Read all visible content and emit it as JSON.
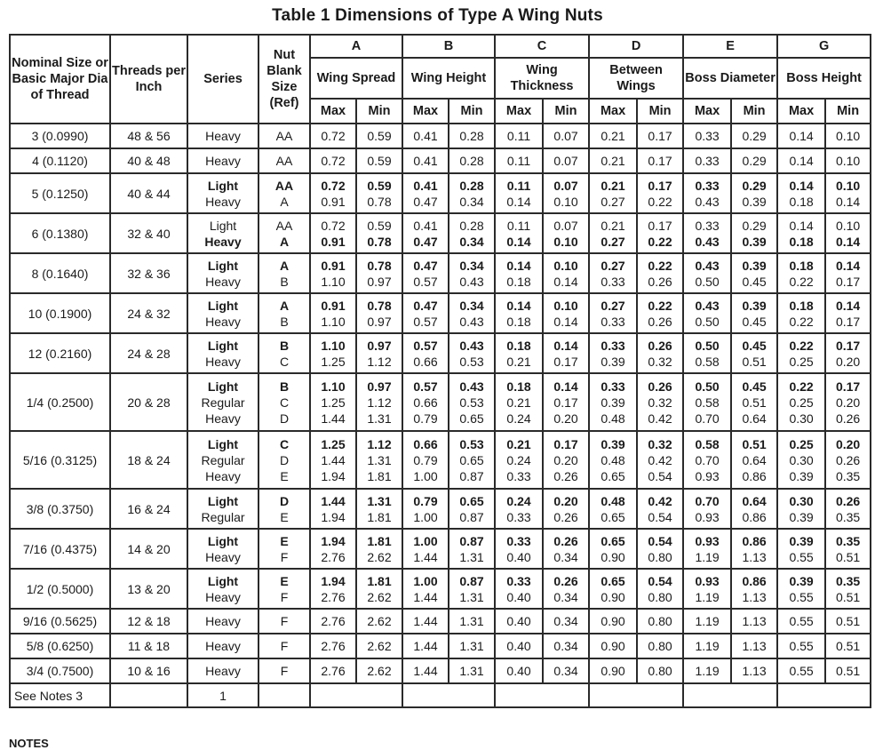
{
  "title": "Table 1   Dimensions of Type A Wing Nuts",
  "header": {
    "nominal": "Nominal Size or Basic Major Dia of Thread",
    "tpi": "Threads per Inch",
    "series": "Series",
    "blank": "Nut Blank Size (Ref)",
    "groups": [
      {
        "letter": "A",
        "name": "Wing Spread"
      },
      {
        "letter": "B",
        "name": "Wing Height"
      },
      {
        "letter": "C",
        "name": "Wing Thickness"
      },
      {
        "letter": "D",
        "name": "Between Wings"
      },
      {
        "letter": "E",
        "name": "Boss Diameter"
      },
      {
        "letter": "G",
        "name": "Boss Height"
      }
    ],
    "max": "Max",
    "min": "Min"
  },
  "rows": [
    {
      "size": "3 (0.0990)",
      "tpi": "48 & 56",
      "sub": [
        {
          "series": "Heavy",
          "blank": "AA",
          "bold": false,
          "v": [
            "0.72",
            "0.59",
            "0.41",
            "0.28",
            "0.11",
            "0.07",
            "0.21",
            "0.17",
            "0.33",
            "0.29",
            "0.14",
            "0.10"
          ]
        }
      ]
    },
    {
      "size": "4 (0.1120)",
      "tpi": "40 & 48",
      "sub": [
        {
          "series": "Heavy",
          "blank": "AA",
          "bold": false,
          "v": [
            "0.72",
            "0.59",
            "0.41",
            "0.28",
            "0.11",
            "0.07",
            "0.21",
            "0.17",
            "0.33",
            "0.29",
            "0.14",
            "0.10"
          ]
        }
      ]
    },
    {
      "size": "5 (0.1250)",
      "tpi": "40 & 44",
      "sub": [
        {
          "series": "Light",
          "blank": "AA",
          "bold": true,
          "v": [
            "0.72",
            "0.59",
            "0.41",
            "0.28",
            "0.11",
            "0.07",
            "0.21",
            "0.17",
            "0.33",
            "0.29",
            "0.14",
            "0.10"
          ]
        },
        {
          "series": "Heavy",
          "blank": "A",
          "bold": false,
          "v": [
            "0.91",
            "0.78",
            "0.47",
            "0.34",
            "0.14",
            "0.10",
            "0.27",
            "0.22",
            "0.43",
            "0.39",
            "0.18",
            "0.14"
          ]
        }
      ]
    },
    {
      "size": "6 (0.1380)",
      "tpi": "32  & 40",
      "sub": [
        {
          "series": "Light",
          "blank": "AA",
          "bold": false,
          "v": [
            "0.72",
            "0.59",
            "0.41",
            "0.28",
            "0.11",
            "0.07",
            "0.21",
            "0.17",
            "0.33",
            "0.29",
            "0.14",
            "0.10"
          ]
        },
        {
          "series": "Heavy",
          "blank": "A",
          "bold": true,
          "v": [
            "0.91",
            "0.78",
            "0.47",
            "0.34",
            "0.14",
            "0.10",
            "0.27",
            "0.22",
            "0.43",
            "0.39",
            "0.18",
            "0.14"
          ]
        }
      ]
    },
    {
      "size": "8 (0.1640)",
      "tpi": "32 & 36",
      "sub": [
        {
          "series": "Light",
          "blank": "A",
          "bold": true,
          "v": [
            "0.91",
            "0.78",
            "0.47",
            "0.34",
            "0.14",
            "0.10",
            "0.27",
            "0.22",
            "0.43",
            "0.39",
            "0.18",
            "0.14"
          ]
        },
        {
          "series": "Heavy",
          "blank": "B",
          "bold": false,
          "v": [
            "1.10",
            "0.97",
            "0.57",
            "0.43",
            "0.18",
            "0.14",
            "0.33",
            "0.26",
            "0.50",
            "0.45",
            "0.22",
            "0.17"
          ]
        }
      ]
    },
    {
      "size": "10 (0.1900)",
      "tpi": "24 & 32",
      "sub": [
        {
          "series": "Light",
          "blank": "A",
          "bold": true,
          "v": [
            "0.91",
            "0.78",
            "0.47",
            "0.34",
            "0.14",
            "0.10",
            "0.27",
            "0.22",
            "0.43",
            "0.39",
            "0.18",
            "0.14"
          ]
        },
        {
          "series": "Heavy",
          "blank": "B",
          "bold": false,
          "v": [
            "1.10",
            "0.97",
            "0.57",
            "0.43",
            "0.18",
            "0.14",
            "0.33",
            "0.26",
            "0.50",
            "0.45",
            "0.22",
            "0.17"
          ]
        }
      ]
    },
    {
      "size": "12 (0.2160)",
      "tpi": "24 & 28",
      "sub": [
        {
          "series": "Light",
          "blank": "B",
          "bold": true,
          "v": [
            "1.10",
            "0.97",
            "0.57",
            "0.43",
            "0.18",
            "0.14",
            "0.33",
            "0.26",
            "0.50",
            "0.45",
            "0.22",
            "0.17"
          ]
        },
        {
          "series": "Heavy",
          "blank": "C",
          "bold": false,
          "v": [
            "1.25",
            "1.12",
            "0.66",
            "0.53",
            "0.21",
            "0.17",
            "0.39",
            "0.32",
            "0.58",
            "0.51",
            "0.25",
            "0.20"
          ]
        }
      ]
    },
    {
      "size": "1/4 (0.2500)",
      "tpi": "20 & 28",
      "sub": [
        {
          "series": "Light",
          "blank": "B",
          "bold": true,
          "v": [
            "1.10",
            "0.97",
            "0.57",
            "0.43",
            "0.18",
            "0.14",
            "0.33",
            "0.26",
            "0.50",
            "0.45",
            "0.22",
            "0.17"
          ]
        },
        {
          "series": "Regular",
          "blank": "C",
          "bold": false,
          "v": [
            "1.25",
            "1.12",
            "0.66",
            "0.53",
            "0.21",
            "0.17",
            "0.39",
            "0.32",
            "0.58",
            "0.51",
            "0.25",
            "0.20"
          ]
        },
        {
          "series": "Heavy",
          "blank": "D",
          "bold": false,
          "v": [
            "1.44",
            "1.31",
            "0.79",
            "0.65",
            "0.24",
            "0.20",
            "0.48",
            "0.42",
            "0.70",
            "0.64",
            "0.30",
            "0.26"
          ]
        }
      ]
    },
    {
      "size": "5/16 (0.3125)",
      "tpi": "18 & 24",
      "sub": [
        {
          "series": "Light",
          "blank": "C",
          "bold": true,
          "v": [
            "1.25",
            "1.12",
            "0.66",
            "0.53",
            "0.21",
            "0.17",
            "0.39",
            "0.32",
            "0.58",
            "0.51",
            "0.25",
            "0.20"
          ]
        },
        {
          "series": "Regular",
          "blank": "D",
          "bold": false,
          "v": [
            "1.44",
            "1.31",
            "0.79",
            "0.65",
            "0.24",
            "0.20",
            "0.48",
            "0.42",
            "0.70",
            "0.64",
            "0.30",
            "0.26"
          ]
        },
        {
          "series": "Heavy",
          "blank": "E",
          "bold": false,
          "v": [
            "1.94",
            "1.81",
            "1.00",
            "0.87",
            "0.33",
            "0.26",
            "0.65",
            "0.54",
            "0.93",
            "0.86",
            "0.39",
            "0.35"
          ]
        }
      ]
    },
    {
      "size": "3/8 (0.3750)",
      "tpi": "16 & 24",
      "sub": [
        {
          "series": "Light",
          "blank": "D",
          "bold": true,
          "v": [
            "1.44",
            "1.31",
            "0.79",
            "0.65",
            "0.24",
            "0.20",
            "0.48",
            "0.42",
            "0.70",
            "0.64",
            "0.30",
            "0.26"
          ]
        },
        {
          "series": "Regular",
          "blank": "E",
          "bold": false,
          "v": [
            "1.94",
            "1.81",
            "1.00",
            "0.87",
            "0.33",
            "0.26",
            "0.65",
            "0.54",
            "0.93",
            "0.86",
            "0.39",
            "0.35"
          ]
        }
      ]
    },
    {
      "size": "7/16 (0.4375)",
      "tpi": "14 & 20",
      "sub": [
        {
          "series": "Light",
          "blank": "E",
          "bold": true,
          "v": [
            "1.94",
            "1.81",
            "1.00",
            "0.87",
            "0.33",
            "0.26",
            "0.65",
            "0.54",
            "0.93",
            "0.86",
            "0.39",
            "0.35"
          ]
        },
        {
          "series": "Heavy",
          "blank": "F",
          "bold": false,
          "v": [
            "2.76",
            "2.62",
            "1.44",
            "1.31",
            "0.40",
            "0.34",
            "0.90",
            "0.80",
            "1.19",
            "1.13",
            "0.55",
            "0.51"
          ]
        }
      ]
    },
    {
      "size": "1/2 (0.5000)",
      "tpi": "13 & 20",
      "sub": [
        {
          "series": "Light",
          "blank": "E",
          "bold": true,
          "v": [
            "1.94",
            "1.81",
            "1.00",
            "0.87",
            "0.33",
            "0.26",
            "0.65",
            "0.54",
            "0.93",
            "0.86",
            "0.39",
            "0.35"
          ]
        },
        {
          "series": "Heavy",
          "blank": "F",
          "bold": false,
          "v": [
            "2.76",
            "2.62",
            "1.44",
            "1.31",
            "0.40",
            "0.34",
            "0.90",
            "0.80",
            "1.19",
            "1.13",
            "0.55",
            "0.51"
          ]
        }
      ]
    },
    {
      "size": "9/16 (0.5625)",
      "tpi": "12 & 18",
      "sub": [
        {
          "series": "Heavy",
          "blank": "F",
          "bold": false,
          "v": [
            "2.76",
            "2.62",
            "1.44",
            "1.31",
            "0.40",
            "0.34",
            "0.90",
            "0.80",
            "1.19",
            "1.13",
            "0.55",
            "0.51"
          ]
        }
      ]
    },
    {
      "size": "5/8 (0.6250)",
      "tpi": "11 & 18",
      "sub": [
        {
          "series": "Heavy",
          "blank": "F",
          "bold": false,
          "v": [
            "2.76",
            "2.62",
            "1.44",
            "1.31",
            "0.40",
            "0.34",
            "0.90",
            "0.80",
            "1.19",
            "1.13",
            "0.55",
            "0.51"
          ]
        }
      ]
    },
    {
      "size": "3/4 (0.7500)",
      "tpi": "10 & 16",
      "sub": [
        {
          "series": "Heavy",
          "blank": "F",
          "bold": false,
          "v": [
            "2.76",
            "2.62",
            "1.44",
            "1.31",
            "0.40",
            "0.34",
            "0.90",
            "0.80",
            "1.19",
            "1.13",
            "0.55",
            "0.51"
          ]
        }
      ]
    }
  ],
  "notes_row": {
    "label": "See Notes  3",
    "series_note": "1"
  },
  "notes_heading": "NOTES"
}
